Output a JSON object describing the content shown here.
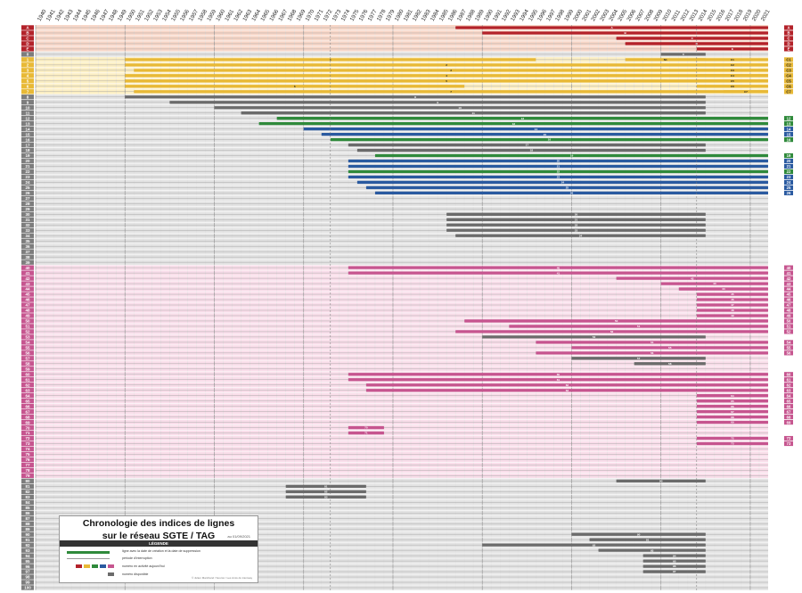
{
  "title_line1": "Chronologie des indices de lignes",
  "title_line2": "sur le réseau SGTE / TAG",
  "date_note": "au 01/09/2021",
  "legend": {
    "heading": "LÉGENDE",
    "item_line": "ligne avec la date de création et la date de suppression",
    "item_interruption": "période d'interruption",
    "item_active": "numéro en activité aujourd'hui",
    "item_available": "numéro disponible"
  },
  "credit": "© Julien Marchand / Sourcé / Les Amis du tramway",
  "colors": {
    "red": "#b3222a",
    "yellow": "#e8b936",
    "grey": "#6b6b6b",
    "green": "#2f8a3b",
    "blue": "#2a5aa0",
    "pink": "#c6558f",
    "band_red": "#f5c9b5",
    "band_yellow": "#fbe9b0",
    "band_pink": "#f7d3e3",
    "band_grey": "#d9d9d9"
  },
  "chart_data": {
    "type": "timeline",
    "x_label": "",
    "x_range": [
      1940,
      2021
    ],
    "years": [
      1940,
      1941,
      1942,
      1943,
      1944,
      1945,
      1946,
      1947,
      1948,
      1949,
      1950,
      1951,
      1952,
      1953,
      1954,
      1955,
      1956,
      1957,
      1958,
      1959,
      1960,
      1961,
      1962,
      1963,
      1964,
      1965,
      1966,
      1967,
      1968,
      1969,
      1970,
      1971,
      1972,
      1973,
      1974,
      1975,
      1976,
      1977,
      1978,
      1979,
      1980,
      1981,
      1982,
      1983,
      1984,
      1985,
      1986,
      1987,
      1988,
      1989,
      1990,
      1991,
      1992,
      1993,
      1994,
      1995,
      1996,
      1997,
      1998,
      1999,
      2000,
      2001,
      2002,
      2003,
      2004,
      2005,
      2006,
      2007,
      2008,
      2009,
      2010,
      2011,
      2012,
      2013,
      2014,
      2015,
      2016,
      2017,
      2018,
      2019,
      2020,
      2021
    ],
    "row_labels": [
      "A",
      "B",
      "C",
      "D",
      "E",
      "0",
      "1",
      "2",
      "3",
      "4",
      "5",
      "6",
      "7",
      "8",
      "9",
      "10",
      "11",
      "12",
      "13",
      "14",
      "15",
      "16",
      "17",
      "18",
      "19",
      "20",
      "21",
      "22",
      "23",
      "24",
      "25",
      "26",
      "27",
      "28",
      "29",
      "30",
      "31",
      "32",
      "33",
      "34",
      "35",
      "36",
      "37",
      "38",
      "39",
      "40",
      "41",
      "42",
      "43",
      "44",
      "45",
      "46",
      "47",
      "48",
      "49",
      "50",
      "51",
      "52",
      "53",
      "54",
      "55",
      "56",
      "57",
      "58",
      "59",
      "60",
      "61",
      "62",
      "63",
      "64",
      "65",
      "66",
      "67",
      "68",
      "69",
      "70",
      "71",
      "72",
      "73",
      "74",
      "75",
      "76",
      "77",
      "78",
      "79",
      "80",
      "81",
      "82",
      "83",
      "84",
      "85",
      "86",
      "87",
      "88",
      "89",
      "90",
      "91",
      "92",
      "93",
      "94",
      "95",
      "96",
      "97",
      "98",
      "99",
      "100"
    ],
    "series": [
      {
        "label": "A",
        "color": "red",
        "start": 1987,
        "end": 2021
      },
      {
        "label": "B",
        "color": "red",
        "start": 1990,
        "end": 2021
      },
      {
        "label": "C",
        "color": "red",
        "start": 2005,
        "end": 2021
      },
      {
        "label": "D",
        "color": "red",
        "start": 2006,
        "end": 2021
      },
      {
        "label": "E",
        "color": "red",
        "start": 2014,
        "end": 2021
      },
      {
        "label": "0",
        "color": "grey",
        "start": 2010,
        "end": 2014
      },
      {
        "label": "1",
        "color": "yellow",
        "start": 1950,
        "end": 1995
      },
      {
        "label": "N1",
        "color": "yellow",
        "start": 2006,
        "end": 2014
      },
      {
        "label": "C1",
        "color": "yellow",
        "start": 2014,
        "end": 2021
      },
      {
        "label": "2",
        "color": "yellow",
        "start": 1950,
        "end": 2021
      },
      {
        "label": "C2",
        "color": "yellow",
        "start": 2014,
        "end": 2021
      },
      {
        "label": "3",
        "color": "yellow",
        "start": 1951,
        "end": 2021
      },
      {
        "label": "C3",
        "color": "yellow",
        "start": 2014,
        "end": 2021
      },
      {
        "label": "4",
        "color": "yellow",
        "start": 1950,
        "end": 2021
      },
      {
        "label": "C4",
        "color": "yellow",
        "start": 2014,
        "end": 2021
      },
      {
        "label": "5",
        "color": "yellow",
        "start": 1950,
        "end": 2021
      },
      {
        "label": "C5",
        "color": "yellow",
        "start": 2014,
        "end": 2021
      },
      {
        "label": "6",
        "color": "yellow",
        "start": 1950,
        "end": 1987
      },
      {
        "label": "C6",
        "color": "yellow",
        "start": 2014,
        "end": 2021
      },
      {
        "label": "7",
        "color": "yellow",
        "start": 1951,
        "end": 2021
      },
      {
        "label": "C7",
        "color": "yellow",
        "start": 2017,
        "end": 2021
      },
      {
        "label": "8",
        "color": "grey",
        "start": 1950,
        "end": 2014
      },
      {
        "label": "9",
        "color": "grey",
        "start": 1955,
        "end": 2014
      },
      {
        "label": "10",
        "color": "grey",
        "start": 1960,
        "end": 2014
      },
      {
        "label": "11",
        "color": "grey",
        "start": 1963,
        "end": 2014
      },
      {
        "label": "12",
        "color": "green",
        "start": 1967,
        "end": 2021
      },
      {
        "label": "13",
        "color": "green",
        "start": 1965,
        "end": 2021
      },
      {
        "label": "14",
        "color": "blue",
        "start": 1970,
        "end": 2021
      },
      {
        "label": "15",
        "color": "blue",
        "start": 1972,
        "end": 2021
      },
      {
        "label": "16",
        "color": "green",
        "start": 1973,
        "end": 2021
      },
      {
        "label": "17",
        "color": "grey",
        "start": 1975,
        "end": 2014
      },
      {
        "label": "18",
        "color": "grey",
        "start": 1976,
        "end": 2014
      },
      {
        "label": "19",
        "color": "green",
        "start": 1978,
        "end": 2021
      },
      {
        "label": "20",
        "color": "blue",
        "start": 1975,
        "end": 2021
      },
      {
        "label": "21",
        "color": "blue",
        "start": 1975,
        "end": 2021
      },
      {
        "label": "22",
        "color": "green",
        "start": 1975,
        "end": 2021
      },
      {
        "label": "23",
        "color": "blue",
        "start": 1975,
        "end": 2021
      },
      {
        "label": "24",
        "color": "blue",
        "start": 1976,
        "end": 2021
      },
      {
        "label": "25",
        "color": "blue",
        "start": 1977,
        "end": 2021
      },
      {
        "label": "26",
        "color": "blue",
        "start": 1978,
        "end": 2021
      },
      {
        "label": "30",
        "color": "grey",
        "start": 1986,
        "end": 2014
      },
      {
        "label": "31",
        "color": "grey",
        "start": 1986,
        "end": 2014
      },
      {
        "label": "32",
        "color": "grey",
        "start": 1986,
        "end": 2014
      },
      {
        "label": "33",
        "color": "grey",
        "start": 1986,
        "end": 2014
      },
      {
        "label": "34",
        "color": "grey",
        "start": 1987,
        "end": 2014
      },
      {
        "label": "40",
        "color": "pink",
        "start": 1975,
        "end": 2021
      },
      {
        "label": "41",
        "color": "pink",
        "start": 1975,
        "end": 2021
      },
      {
        "label": "42",
        "color": "pink",
        "start": 2005,
        "end": 2021
      },
      {
        "label": "43",
        "color": "pink",
        "start": 2010,
        "end": 2021
      },
      {
        "label": "44",
        "color": "pink",
        "start": 2012,
        "end": 2021
      },
      {
        "label": "45",
        "color": "pink",
        "start": 2014,
        "end": 2021
      },
      {
        "label": "46",
        "color": "pink",
        "start": 2014,
        "end": 2021
      },
      {
        "label": "47",
        "color": "pink",
        "start": 2014,
        "end": 2021
      },
      {
        "label": "48",
        "color": "pink",
        "start": 2014,
        "end": 2021
      },
      {
        "label": "49",
        "color": "pink",
        "start": 2014,
        "end": 2021
      },
      {
        "label": "50",
        "color": "pink",
        "start": 1988,
        "end": 2021
      },
      {
        "label": "51",
        "color": "pink",
        "start": 1993,
        "end": 2021
      },
      {
        "label": "52",
        "color": "pink",
        "start": 1987,
        "end": 2021
      },
      {
        "label": "53",
        "color": "grey",
        "start": 1990,
        "end": 2014
      },
      {
        "label": "54",
        "color": "pink",
        "start": 1996,
        "end": 2021
      },
      {
        "label": "55",
        "color": "pink",
        "start": 2000,
        "end": 2021
      },
      {
        "label": "56",
        "color": "pink",
        "start": 1996,
        "end": 2021
      },
      {
        "label": "57",
        "color": "grey",
        "start": 2000,
        "end": 2014
      },
      {
        "label": "58",
        "color": "grey",
        "start": 2007,
        "end": 2014
      },
      {
        "label": "60",
        "color": "pink",
        "start": 1975,
        "end": 2021
      },
      {
        "label": "61",
        "color": "pink",
        "start": 1975,
        "end": 2021
      },
      {
        "label": "62",
        "color": "pink",
        "start": 1977,
        "end": 2021
      },
      {
        "label": "63",
        "color": "pink",
        "start": 1977,
        "end": 2021
      },
      {
        "label": "64",
        "color": "pink",
        "start": 2014,
        "end": 2021
      },
      {
        "label": "65",
        "color": "pink",
        "start": 2014,
        "end": 2021
      },
      {
        "label": "66",
        "color": "pink",
        "start": 2014,
        "end": 2021
      },
      {
        "label": "67",
        "color": "pink",
        "start": 2014,
        "end": 2021
      },
      {
        "label": "68",
        "color": "pink",
        "start": 2014,
        "end": 2021
      },
      {
        "label": "69",
        "color": "pink",
        "start": 2014,
        "end": 2021
      },
      {
        "label": "70",
        "color": "pink",
        "start": 1975,
        "end": 1978
      },
      {
        "label": "71",
        "color": "pink",
        "start": 1975,
        "end": 1978
      },
      {
        "label": "72",
        "color": "pink",
        "start": 2014,
        "end": 2021
      },
      {
        "label": "73",
        "color": "pink",
        "start": 2014,
        "end": 2021
      },
      {
        "label": "80",
        "color": "grey",
        "start": 2005,
        "end": 2014
      },
      {
        "label": "81",
        "color": "grey",
        "start": 1968,
        "end": 1976
      },
      {
        "label": "82",
        "color": "grey",
        "start": 1968,
        "end": 1976
      },
      {
        "label": "83",
        "color": "grey",
        "start": 1968,
        "end": 1976
      },
      {
        "label": "90",
        "color": "grey",
        "start": 2000,
        "end": 2014
      },
      {
        "label": "91",
        "color": "grey",
        "start": 2002,
        "end": 2014
      },
      {
        "label": "92",
        "color": "grey",
        "start": 1990,
        "end": 2014
      },
      {
        "label": "93",
        "color": "grey",
        "start": 2003,
        "end": 2014
      },
      {
        "label": "94",
        "color": "grey",
        "start": 2008,
        "end": 2014
      },
      {
        "label": "95",
        "color": "grey",
        "start": 2008,
        "end": 2014
      },
      {
        "label": "96",
        "color": "grey",
        "start": 2008,
        "end": 2014
      },
      {
        "label": "97",
        "color": "grey",
        "start": 2008,
        "end": 2014
      }
    ]
  }
}
